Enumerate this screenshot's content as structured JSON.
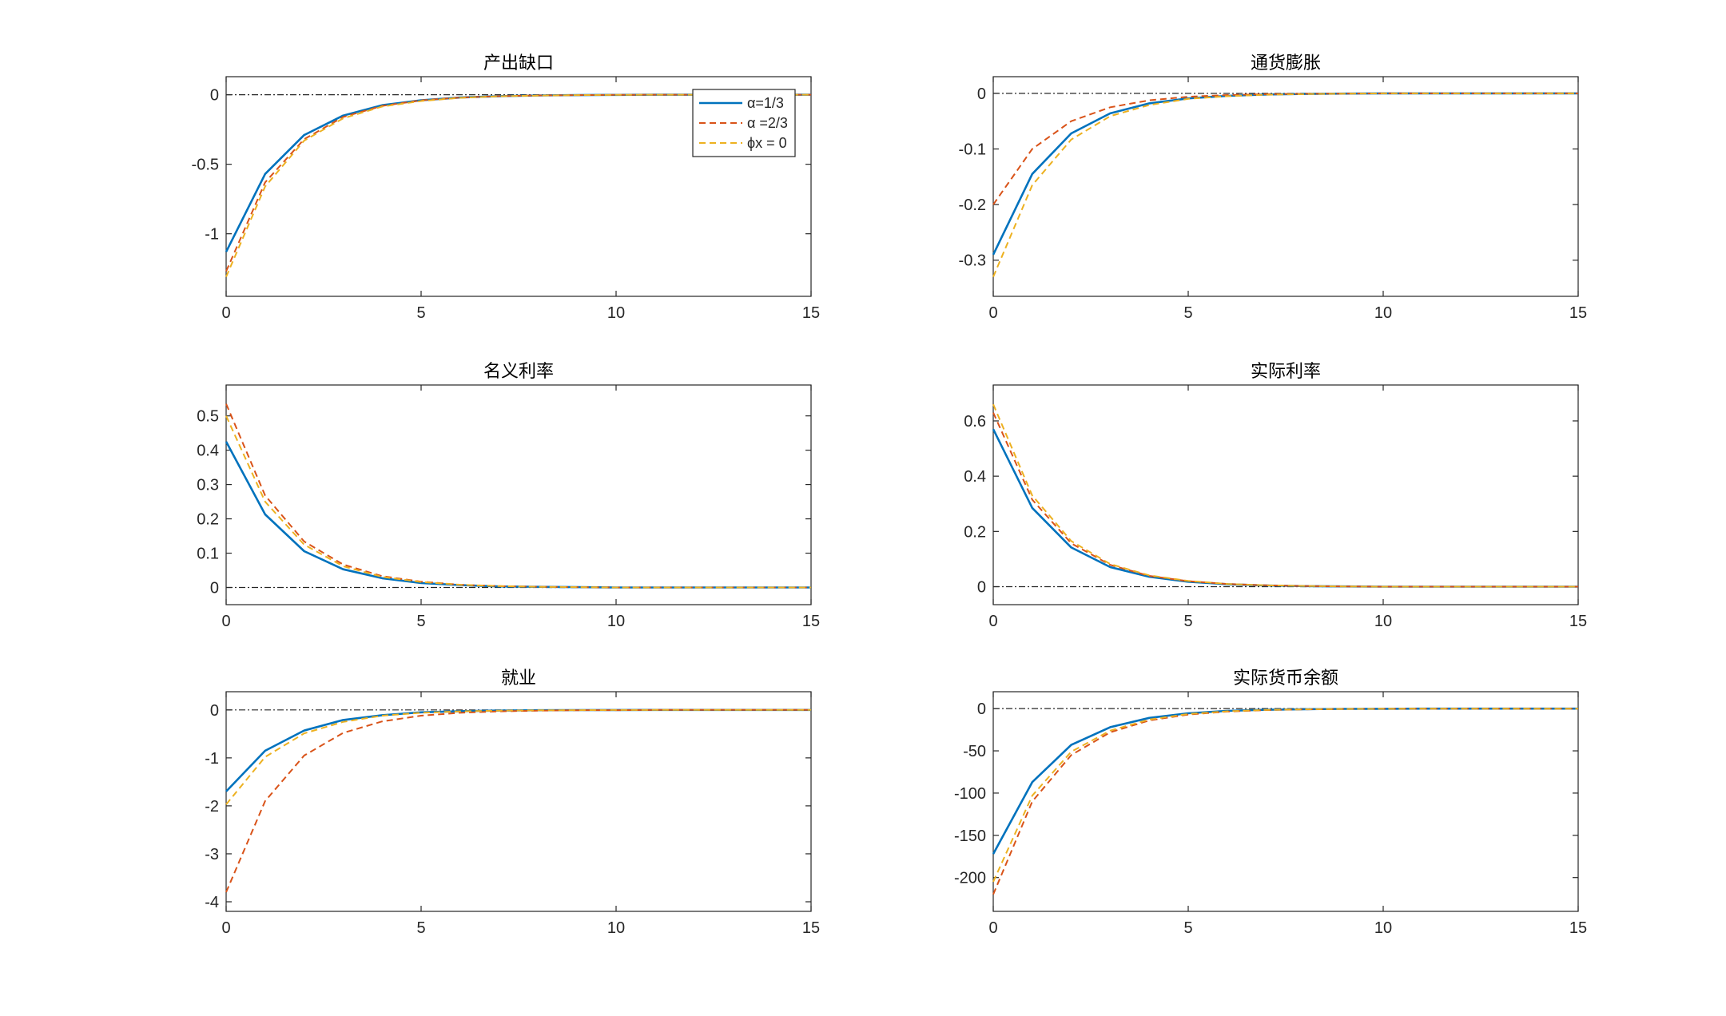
{
  "legend": {
    "entries": [
      {
        "label": "α=1/3",
        "color": "#0072BD",
        "dash": "solid"
      },
      {
        "label": "α =2/3",
        "color": "#D95319",
        "dash": "dashed"
      },
      {
        "label": "ϕx = 0",
        "color": "#EDB120",
        "dash": "dashed"
      }
    ]
  },
  "chart_data": [
    {
      "type": "line",
      "title": "产出缺口",
      "xlim": [
        0,
        15
      ],
      "ylim": [
        -1.45,
        0.13
      ],
      "xticks": [
        0,
        5,
        10,
        15
      ],
      "yticks": [
        0,
        -0.5,
        -1
      ],
      "x": [
        0,
        1,
        2,
        3,
        4,
        5,
        6,
        7,
        8,
        9,
        10,
        11,
        12,
        13,
        14,
        15
      ],
      "series": [
        {
          "name": "α=1/3",
          "color": "#0072BD",
          "dash": "solid",
          "values": [
            -1.13,
            -0.57,
            -0.29,
            -0.15,
            -0.075,
            -0.04,
            -0.02,
            -0.01,
            -0.005,
            -0.003,
            -0.001,
            0,
            0,
            0,
            0,
            0
          ]
        },
        {
          "name": "α =2/3",
          "color": "#D95319",
          "dash": "dashed",
          "values": [
            -1.27,
            -0.63,
            -0.32,
            -0.16,
            -0.08,
            -0.04,
            -0.02,
            -0.01,
            -0.005,
            -0.003,
            -0.001,
            0,
            0,
            0,
            0,
            0
          ]
        },
        {
          "name": "ϕx = 0",
          "color": "#EDB120",
          "dash": "dashed",
          "values": [
            -1.31,
            -0.66,
            -0.33,
            -0.17,
            -0.085,
            -0.045,
            -0.022,
            -0.011,
            -0.006,
            -0.003,
            -0.001,
            0,
            0,
            0,
            0,
            0
          ]
        }
      ],
      "zero_line": true
    },
    {
      "type": "line",
      "title": "通货膨胀",
      "xlim": [
        0,
        15
      ],
      "ylim": [
        -0.365,
        0.03
      ],
      "xticks": [
        0,
        5,
        10,
        15
      ],
      "yticks": [
        0,
        -0.1,
        -0.2,
        -0.3
      ],
      "x": [
        0,
        1,
        2,
        3,
        4,
        5,
        6,
        7,
        8,
        9,
        10,
        11,
        12,
        13,
        14,
        15
      ],
      "series": [
        {
          "name": "α=1/3",
          "color": "#0072BD",
          "dash": "solid",
          "values": [
            -0.29,
            -0.145,
            -0.072,
            -0.036,
            -0.018,
            -0.009,
            -0.0045,
            -0.002,
            -0.001,
            -0.0005,
            0,
            0,
            0,
            0,
            0,
            0
          ]
        },
        {
          "name": "α =2/3",
          "color": "#D95319",
          "dash": "dashed",
          "values": [
            -0.2,
            -0.1,
            -0.05,
            -0.025,
            -0.0125,
            -0.006,
            -0.003,
            -0.0015,
            -0.0008,
            -0.0004,
            0,
            0,
            0,
            0,
            0,
            0
          ]
        },
        {
          "name": "ϕx = 0",
          "color": "#EDB120",
          "dash": "dashed",
          "values": [
            -0.33,
            -0.165,
            -0.083,
            -0.041,
            -0.021,
            -0.01,
            -0.005,
            -0.0025,
            -0.0013,
            -0.0006,
            0,
            0,
            0,
            0,
            0,
            0
          ]
        }
      ],
      "zero_line": true
    },
    {
      "type": "line",
      "title": "名义利率",
      "xlim": [
        0,
        15
      ],
      "ylim": [
        -0.05,
        0.59
      ],
      "xticks": [
        0,
        5,
        10,
        15
      ],
      "yticks": [
        0,
        0.1,
        0.2,
        0.3,
        0.4,
        0.5
      ],
      "x": [
        0,
        1,
        2,
        3,
        4,
        5,
        6,
        7,
        8,
        9,
        10,
        11,
        12,
        13,
        14,
        15
      ],
      "series": [
        {
          "name": "α=1/3",
          "color": "#0072BD",
          "dash": "solid",
          "values": [
            0.425,
            0.213,
            0.106,
            0.053,
            0.027,
            0.013,
            0.007,
            0.003,
            0.002,
            0.001,
            0,
            0,
            0,
            0,
            0,
            0
          ]
        },
        {
          "name": "α =2/3",
          "color": "#D95319",
          "dash": "dashed",
          "values": [
            0.535,
            0.268,
            0.134,
            0.067,
            0.033,
            0.017,
            0.008,
            0.004,
            0.002,
            0.001,
            0,
            0,
            0,
            0,
            0,
            0
          ]
        },
        {
          "name": "ϕx = 0",
          "color": "#EDB120",
          "dash": "dashed",
          "values": [
            0.5,
            0.25,
            0.125,
            0.062,
            0.031,
            0.016,
            0.008,
            0.004,
            0.002,
            0.001,
            0,
            0,
            0,
            0,
            0,
            0
          ]
        }
      ],
      "zero_line": true
    },
    {
      "type": "line",
      "title": "实际利率",
      "xlim": [
        0,
        15
      ],
      "ylim": [
        -0.065,
        0.73
      ],
      "xticks": [
        0,
        5,
        10,
        15
      ],
      "yticks": [
        0,
        0.2,
        0.4,
        0.6
      ],
      "x": [
        0,
        1,
        2,
        3,
        4,
        5,
        6,
        7,
        8,
        9,
        10,
        11,
        12,
        13,
        14,
        15
      ],
      "series": [
        {
          "name": "α=1/3",
          "color": "#0072BD",
          "dash": "solid",
          "values": [
            0.57,
            0.285,
            0.142,
            0.071,
            0.036,
            0.018,
            0.009,
            0.0045,
            0.002,
            0.001,
            0,
            0,
            0,
            0,
            0,
            0
          ]
        },
        {
          "name": "α =2/3",
          "color": "#D95319",
          "dash": "dashed",
          "values": [
            0.63,
            0.315,
            0.157,
            0.079,
            0.039,
            0.02,
            0.01,
            0.005,
            0.0025,
            0.001,
            0,
            0,
            0,
            0,
            0,
            0
          ]
        },
        {
          "name": "ϕx = 0",
          "color": "#EDB120",
          "dash": "dashed",
          "values": [
            0.66,
            0.33,
            0.165,
            0.082,
            0.041,
            0.021,
            0.01,
            0.005,
            0.0026,
            0.001,
            0,
            0,
            0,
            0,
            0,
            0
          ]
        }
      ],
      "zero_line": true
    },
    {
      "type": "line",
      "title": "就业",
      "xlim": [
        0,
        15
      ],
      "ylim": [
        -4.2,
        0.38
      ],
      "xticks": [
        0,
        5,
        10,
        15
      ],
      "yticks": [
        0,
        -1,
        -2,
        -3,
        -4
      ],
      "x": [
        0,
        1,
        2,
        3,
        4,
        5,
        6,
        7,
        8,
        9,
        10,
        11,
        12,
        13,
        14,
        15
      ],
      "series": [
        {
          "name": "α=1/3",
          "color": "#0072BD",
          "dash": "solid",
          "values": [
            -1.7,
            -0.85,
            -0.43,
            -0.21,
            -0.11,
            -0.05,
            -0.027,
            -0.013,
            -0.007,
            -0.003,
            -0.002,
            0,
            0,
            0,
            0,
            0
          ]
        },
        {
          "name": "α =2/3",
          "color": "#D95319",
          "dash": "dashed",
          "values": [
            -3.8,
            -1.9,
            -0.95,
            -0.48,
            -0.24,
            -0.12,
            -0.06,
            -0.03,
            -0.015,
            -0.007,
            -0.004,
            0,
            0,
            0,
            0,
            0
          ]
        },
        {
          "name": "ϕx = 0",
          "color": "#EDB120",
          "dash": "dashed",
          "values": [
            -1.97,
            -0.98,
            -0.49,
            -0.25,
            -0.12,
            -0.06,
            -0.03,
            -0.015,
            -0.008,
            -0.004,
            -0.002,
            0,
            0,
            0,
            0,
            0
          ]
        }
      ],
      "zero_line": true
    },
    {
      "type": "line",
      "title": "实际货币余额",
      "xlim": [
        0,
        15
      ],
      "ylim": [
        -240,
        20
      ],
      "xticks": [
        0,
        5,
        10,
        15
      ],
      "yticks": [
        0,
        -50,
        -100,
        -150,
        -200
      ],
      "x": [
        0,
        1,
        2,
        3,
        4,
        5,
        6,
        7,
        8,
        9,
        10,
        11,
        12,
        13,
        14,
        15
      ],
      "series": [
        {
          "name": "α=1/3",
          "color": "#0072BD",
          "dash": "solid",
          "values": [
            -172,
            -87,
            -43,
            -22,
            -11,
            -5.5,
            -2.7,
            -1.4,
            -0.7,
            -0.35,
            -0.2,
            0,
            0,
            0,
            0,
            0
          ]
        },
        {
          "name": "α =2/3",
          "color": "#D95319",
          "dash": "dashed",
          "values": [
            -220,
            -110,
            -55,
            -28,
            -14,
            -7,
            -3.5,
            -1.7,
            -0.9,
            -0.45,
            -0.2,
            0,
            0,
            0,
            0,
            0
          ]
        },
        {
          "name": "ϕx = 0",
          "color": "#EDB120",
          "dash": "dashed",
          "values": [
            -205,
            -103,
            -51,
            -26,
            -13,
            -6.4,
            -3.2,
            -1.6,
            -0.8,
            -0.4,
            -0.2,
            0,
            0,
            0,
            0,
            0
          ]
        }
      ],
      "zero_line": true
    }
  ]
}
